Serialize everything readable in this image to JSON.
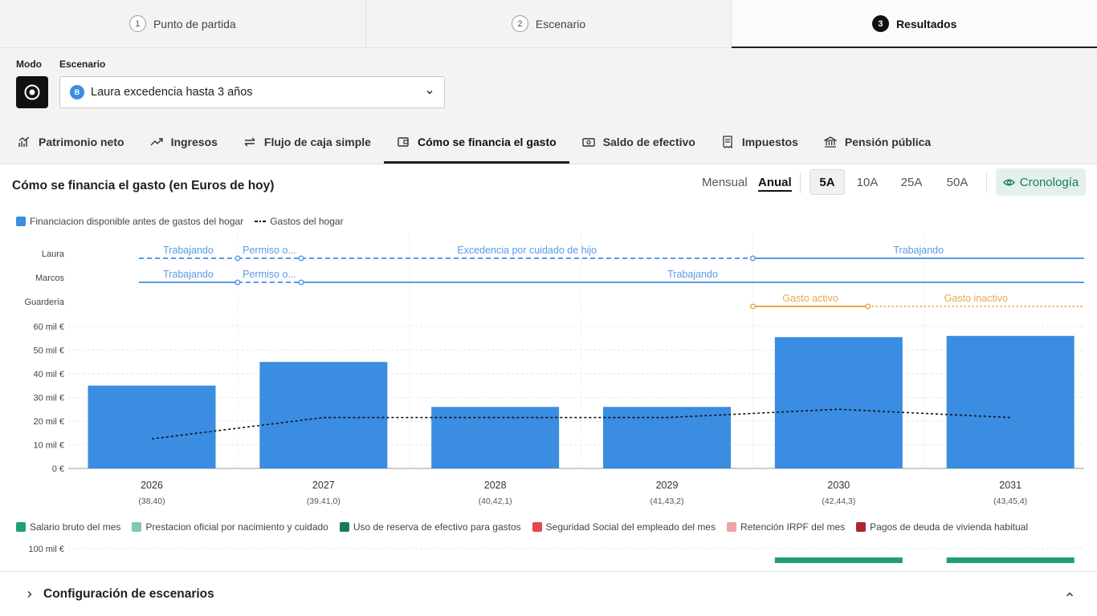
{
  "stepper": [
    {
      "num": "1",
      "label": "Punto de partida",
      "active": false
    },
    {
      "num": "2",
      "label": "Escenario",
      "active": false
    },
    {
      "num": "3",
      "label": "Resultados",
      "active": true
    }
  ],
  "controls": {
    "mode_label": "Modo",
    "scenario_label": "Escenario",
    "scenario_badge": "B",
    "scenario_value": "Laura excedencia hasta 3 años"
  },
  "tabs": [
    {
      "label": "Patrimonio neto",
      "icon": "chart-icon"
    },
    {
      "label": "Ingresos",
      "icon": "trend-icon"
    },
    {
      "label": "Flujo de caja simple",
      "icon": "swap-icon"
    },
    {
      "label": "Cómo se financia el gasto",
      "icon": "wallet-icon"
    },
    {
      "label": "Saldo de efectivo",
      "icon": "cash-icon"
    },
    {
      "label": "Impuestos",
      "icon": "receipt-icon"
    },
    {
      "label": "Pensión pública",
      "icon": "bank-icon"
    }
  ],
  "chart_header": {
    "title": "Cómo se financia el gasto (en Euros de hoy)",
    "period_monthly": "Mensual",
    "period_annual": "Anual",
    "ranges": [
      "5A",
      "10A",
      "25A",
      "50A"
    ],
    "active_range": "5A",
    "timeline_button": "Cronología"
  },
  "legend_top": [
    {
      "label": "Financiacion disponible antes de gastos del hogar",
      "kind": "box",
      "color": "#3a8de0"
    },
    {
      "label": "Gastos del hogar",
      "kind": "dash",
      "color": "#111111"
    }
  ],
  "timeline": {
    "rows": [
      {
        "label": "Laura",
        "color": "#5a9ae6",
        "segments": [
          {
            "text": "Trabajando",
            "x0": 2025.75,
            "x1": 2026.5,
            "style": "dashed"
          },
          {
            "text": "Permiso o...",
            "x0": 2026.5,
            "x1": 2026.87,
            "style": "dashed"
          },
          {
            "text": "Excedencia por cuidado de hijo",
            "x0": 2026.87,
            "x1": 2029.5,
            "style": "dashed"
          },
          {
            "text": "Trabajando",
            "x0": 2029.5,
            "x1": 2032.0,
            "style": "solid"
          }
        ]
      },
      {
        "label": "Marcos",
        "color": "#5a9ae6",
        "segments": [
          {
            "text": "Trabajando",
            "x0": 2025.75,
            "x1": 2026.5,
            "style": "solid"
          },
          {
            "text": "Permiso o...",
            "x0": 2026.5,
            "x1": 2026.87,
            "style": "dashed"
          },
          {
            "text": "Trabajando",
            "x0": 2026.87,
            "x1": 2032.0,
            "style": "solid"
          }
        ]
      },
      {
        "label": "Guardería",
        "color": "#e8a94a",
        "segments": [
          {
            "text": "Gasto activo",
            "x0": 2029.5,
            "x1": 2030.17,
            "style": "solid"
          },
          {
            "text": "Gasto inactivo",
            "x0": 2030.17,
            "x1": 2032.0,
            "style": "dotted"
          }
        ]
      }
    ]
  },
  "chart_data": {
    "type": "bar",
    "title": "Cómo se financia el gasto (en Euros de hoy)",
    "categories": [
      "2026",
      "2027",
      "2028",
      "2029",
      "2030",
      "2031"
    ],
    "category_sublabels": [
      "(38,40)",
      "(39,41,0)",
      "(40,42,1)",
      "(41,43,2)",
      "(42,44,3)",
      "(43,45,4)"
    ],
    "series": [
      {
        "name": "Financiacion disponible antes de gastos del hogar",
        "type": "bar",
        "color": "#3a8de0",
        "values": [
          35000,
          45000,
          26000,
          26000,
          55500,
          56000
        ]
      },
      {
        "name": "Gastos del hogar",
        "type": "line",
        "style": "dotted",
        "color": "#111111",
        "values": [
          12500,
          21500,
          21500,
          21500,
          25000,
          21500
        ]
      }
    ],
    "yticks": [
      "0 €",
      "10 mil €",
      "20 mil €",
      "30 mil €",
      "40 mil €",
      "50 mil €",
      "60 mil €"
    ],
    "ylim": [
      0,
      60000
    ]
  },
  "legend_bottom": [
    {
      "label": "Salario bruto del mes",
      "color": "#1f9e78"
    },
    {
      "label": "Prestacion oficial por nacimiento y cuidado",
      "color": "#7fc9b0"
    },
    {
      "label": "Uso de reserva de efectivo para gastos",
      "color": "#197a5a"
    },
    {
      "label": "Seguridad Social del empleado del mes",
      "color": "#e8454d"
    },
    {
      "label": "Retención IRPF del mes",
      "color": "#f0a3a8"
    },
    {
      "label": "Pagos de deuda de vivienda habitual",
      "color": "#b0222c"
    }
  ],
  "second_chart": {
    "ytick": "100 mil €",
    "visible_bars": [
      {
        "category": "2030",
        "color": "#1f9e78"
      },
      {
        "category": "2031",
        "color": "#1f9e78"
      }
    ]
  },
  "config": {
    "title": "Configuración de escenarios"
  }
}
